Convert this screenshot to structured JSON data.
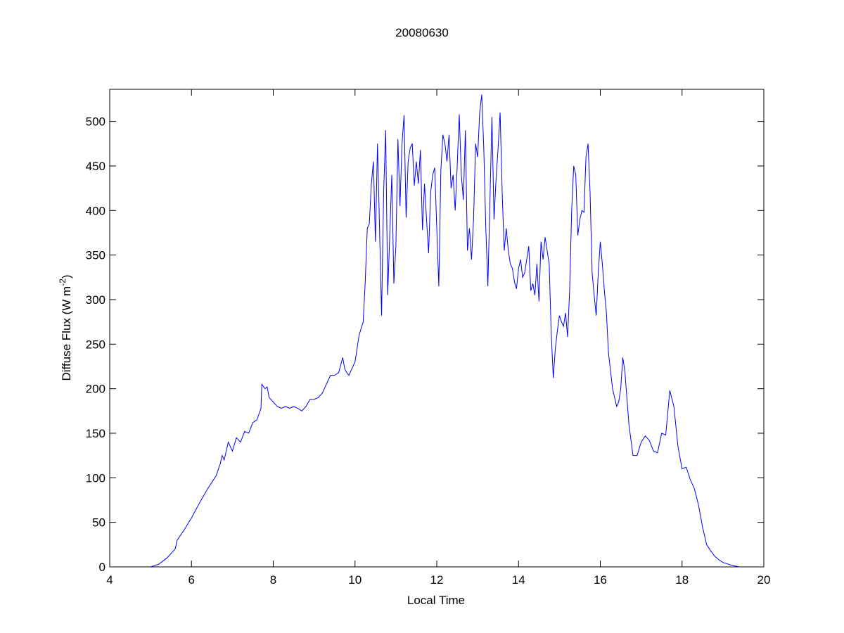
{
  "chart_data": {
    "type": "line",
    "title": "20080630",
    "xlabel": "Local Time",
    "ylabel": [
      "Diffuse Flux (W m",
      "-2",
      ")"
    ],
    "color": "#0000ff",
    "xlim": [
      4,
      20
    ],
    "xticks": [
      4,
      6,
      8,
      10,
      12,
      14,
      16,
      18,
      20
    ],
    "ylim": [
      0,
      536
    ],
    "yticks": [
      0,
      50,
      100,
      150,
      200,
      250,
      300,
      350,
      400,
      450,
      500
    ],
    "x": [
      5.0,
      5.2,
      5.4,
      5.6,
      5.65,
      5.8,
      6.0,
      6.2,
      6.4,
      6.6,
      6.7,
      6.75,
      6.8,
      6.9,
      7.0,
      7.1,
      7.2,
      7.3,
      7.4,
      7.5,
      7.6,
      7.7,
      7.72,
      7.8,
      7.85,
      7.9,
      8.0,
      8.1,
      8.2,
      8.3,
      8.4,
      8.5,
      8.6,
      8.7,
      8.8,
      8.9,
      9.0,
      9.1,
      9.2,
      9.3,
      9.4,
      9.5,
      9.6,
      9.7,
      9.75,
      9.8,
      9.85,
      9.9,
      10.0,
      10.1,
      10.2,
      10.25,
      10.3,
      10.35,
      10.4,
      10.45,
      10.5,
      10.55,
      10.6,
      10.65,
      10.7,
      10.75,
      10.8,
      10.9,
      10.95,
      11.0,
      11.05,
      11.1,
      11.15,
      11.2,
      11.25,
      11.3,
      11.35,
      11.4,
      11.45,
      11.5,
      11.55,
      11.6,
      11.65,
      11.7,
      11.75,
      11.8,
      11.85,
      11.9,
      11.95,
      12.0,
      12.05,
      12.1,
      12.15,
      12.2,
      12.25,
      12.3,
      12.35,
      12.4,
      12.45,
      12.5,
      12.55,
      12.6,
      12.65,
      12.7,
      12.75,
      12.8,
      12.85,
      12.9,
      12.95,
      13.0,
      13.05,
      13.1,
      13.15,
      13.2,
      13.25,
      13.3,
      13.35,
      13.4,
      13.45,
      13.5,
      13.55,
      13.6,
      13.65,
      13.7,
      13.75,
      13.8,
      13.85,
      13.9,
      13.95,
      14.0,
      14.05,
      14.1,
      14.15,
      14.2,
      14.25,
      14.3,
      14.35,
      14.4,
      14.45,
      14.5,
      14.55,
      14.6,
      14.65,
      14.7,
      14.75,
      14.8,
      14.85,
      14.9,
      14.95,
      15.0,
      15.05,
      15.1,
      15.15,
      15.2,
      15.25,
      15.3,
      15.35,
      15.4,
      15.45,
      15.5,
      15.55,
      15.6,
      15.65,
      15.7,
      15.75,
      15.8,
      15.85,
      15.9,
      15.95,
      16.0,
      16.05,
      16.1,
      16.15,
      16.2,
      16.3,
      16.4,
      16.45,
      16.5,
      16.55,
      16.6,
      16.7,
      16.8,
      16.9,
      17.0,
      17.1,
      17.2,
      17.3,
      17.4,
      17.5,
      17.6,
      17.7,
      17.8,
      17.9,
      18.0,
      18.1,
      18.2,
      18.3,
      18.4,
      18.5,
      18.6,
      18.7,
      18.8,
      18.9,
      19.0,
      19.2,
      19.4
    ],
    "values": [
      0,
      3,
      10,
      20,
      30,
      40,
      55,
      72,
      88,
      102,
      115,
      125,
      120,
      140,
      130,
      145,
      140,
      152,
      150,
      162,
      165,
      178,
      205,
      200,
      202,
      190,
      185,
      180,
      178,
      180,
      178,
      180,
      178,
      175,
      180,
      188,
      188,
      190,
      195,
      205,
      215,
      215,
      218,
      235,
      222,
      218,
      215,
      220,
      230,
      260,
      275,
      320,
      380,
      385,
      430,
      455,
      365,
      475,
      380,
      282,
      420,
      490,
      305,
      440,
      318,
      360,
      480,
      405,
      475,
      507,
      392,
      455,
      470,
      475,
      428,
      455,
      430,
      468,
      378,
      430,
      390,
      352,
      420,
      440,
      448,
      380,
      315,
      445,
      485,
      475,
      455,
      485,
      425,
      440,
      400,
      450,
      508,
      440,
      412,
      490,
      355,
      380,
      345,
      390,
      475,
      460,
      510,
      530,
      470,
      380,
      315,
      410,
      505,
      390,
      435,
      470,
      510,
      420,
      355,
      380,
      355,
      340,
      335,
      320,
      312,
      335,
      345,
      325,
      330,
      345,
      360,
      310,
      318,
      305,
      340,
      298,
      365,
      345,
      370,
      355,
      340,
      262,
      212,
      245,
      265,
      282,
      275,
      270,
      285,
      258,
      310,
      400,
      450,
      440,
      372,
      390,
      400,
      398,
      460,
      475,
      420,
      330,
      305,
      282,
      330,
      365,
      340,
      310,
      285,
      240,
      200,
      180,
      185,
      200,
      235,
      220,
      160,
      125,
      125,
      140,
      147,
      142,
      130,
      128,
      150,
      148,
      198,
      180,
      135,
      110,
      112,
      98,
      88,
      70,
      45,
      25,
      18,
      12,
      8,
      5,
      2,
      0
    ]
  }
}
